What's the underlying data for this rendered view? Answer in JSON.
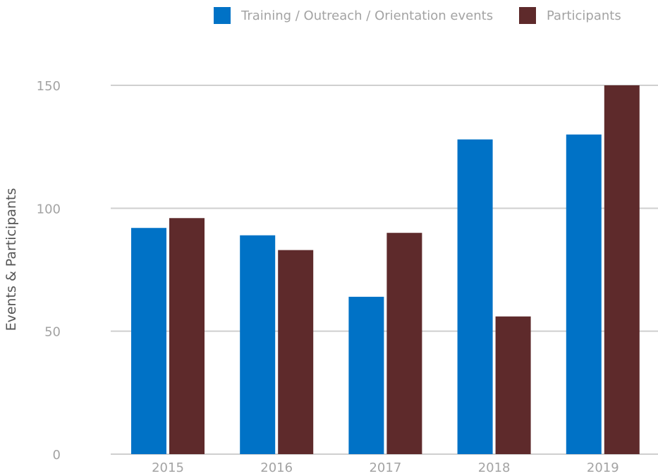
{
  "chart_data": {
    "type": "bar",
    "categories": [
      "2015",
      "2016",
      "2017",
      "2018",
      "2019"
    ],
    "series": [
      {
        "name": "Training / Outreach / Orientation events",
        "color": "#0072c6",
        "values": [
          92,
          89,
          64,
          128,
          130
        ]
      },
      {
        "name": "Participants",
        "color": "#5e2a2b",
        "values": [
          96,
          83,
          90,
          56,
          150
        ]
      }
    ],
    "ylabel": "Events & Participants",
    "xlabel": "",
    "ylim": [
      0,
      150
    ],
    "yticks": [
      0,
      50,
      100,
      150
    ],
    "grid": true,
    "legend_position": "top-right"
  }
}
